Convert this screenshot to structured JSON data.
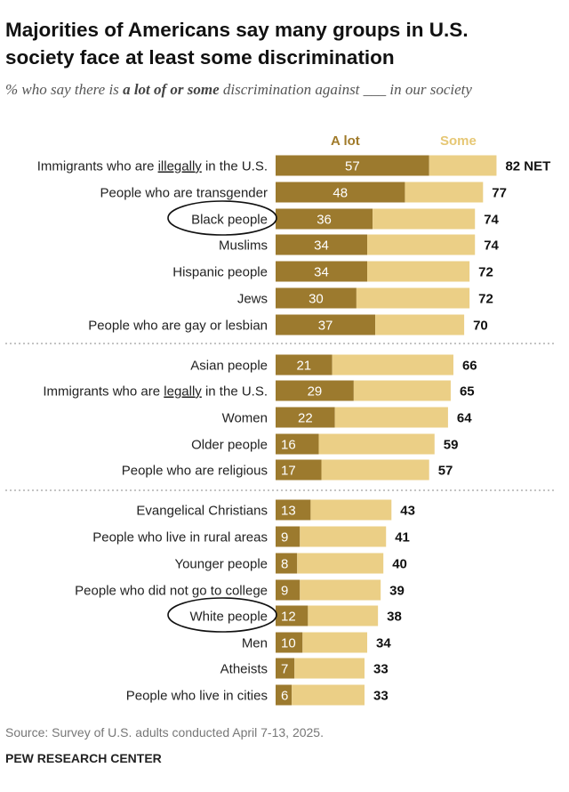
{
  "title_line1": "Majorities of Americans say many groups in U.S.",
  "title_line2": "society face at least some discrimination",
  "subtitle_pre": "% who say there is ",
  "subtitle_bold": "a lot of or some",
  "subtitle_post": " discrimination against ___ in our society",
  "source": "Source: Survey of U.S. adults conducted April 7-13, 2025.",
  "footer": "PEW RESEARCH CENTER",
  "colors": {
    "a_lot": "#9c7a2e",
    "some": "#ebcf86",
    "separator": "#b0b0b0",
    "circle": "#111111"
  },
  "chart_data": {
    "type": "bar",
    "orientation": "horizontal",
    "stacked": true,
    "series": [
      {
        "name": "A lot",
        "values": [
          57,
          48,
          36,
          34,
          34,
          30,
          37,
          21,
          29,
          22,
          16,
          17,
          13,
          9,
          8,
          9,
          12,
          10,
          7,
          6
        ]
      },
      {
        "name": "Some",
        "values": [
          25,
          29,
          38,
          40,
          38,
          42,
          33,
          45,
          36,
          42,
          43,
          40,
          30,
          32,
          32,
          30,
          26,
          24,
          26,
          27
        ]
      }
    ],
    "net_values": [
      "82 NET",
      "77",
      "74",
      "74",
      "72",
      "72",
      "70",
      "66",
      "65",
      "64",
      "59",
      "57",
      "43",
      "41",
      "40",
      "39",
      "38",
      "34",
      "33",
      "33"
    ],
    "categories": [
      "Immigrants who are illegally in the U.S.",
      "People who are transgender",
      "Black people",
      "Muslims",
      "Hispanic people",
      "Jews",
      "People who are gay or lesbian",
      "Asian people",
      "Immigrants who are legally in the U.S.",
      "Women",
      "Older people",
      "People who are religious",
      "Evangelical Christians",
      "People who live in rural areas",
      "Younger people",
      "People who did not go to college",
      "White people",
      "Men",
      "Atheists",
      "People who live in cities"
    ],
    "underlined_words": {
      "0": "illegally",
      "8": "legally"
    },
    "circled_categories": [
      "Black people",
      "White people"
    ],
    "groups": [
      [
        0,
        6
      ],
      [
        7,
        11
      ],
      [
        12,
        19
      ]
    ]
  }
}
